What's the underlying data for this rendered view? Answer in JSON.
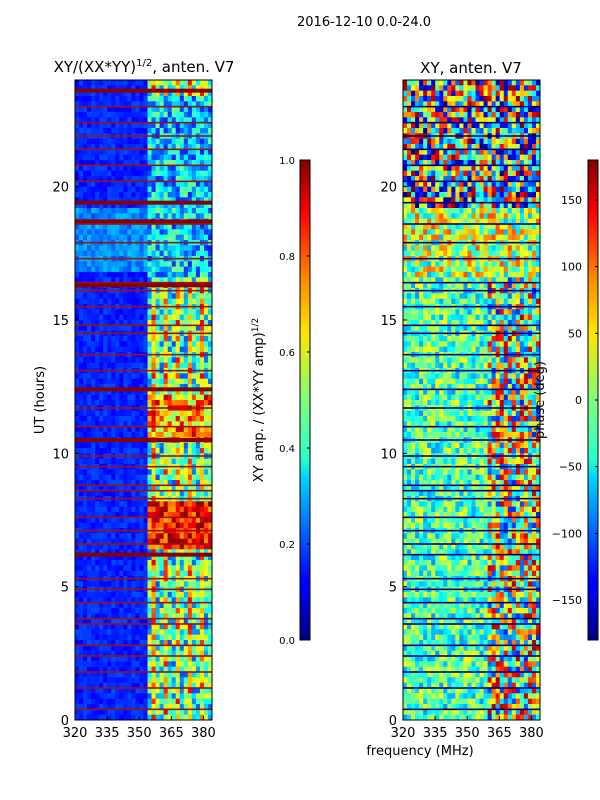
{
  "figure": {
    "suptitle": "2016-12-10 0.0-24.0"
  },
  "chart_data": [
    {
      "type": "heatmap",
      "title": "XY/(XX*YY)",
      "title_sup": "1/2",
      "title_suffix": ", anten. V7",
      "xlabel": "",
      "ylabel": "UT (hours)",
      "xlim": [
        320,
        384
      ],
      "ylim": [
        0,
        24
      ],
      "x_ticks": [
        320,
        335,
        350,
        365,
        380
      ],
      "y_ticks": [
        0,
        5,
        10,
        15,
        20
      ],
      "colorbar": {
        "label": "XY amp. / (XX*YY amp)",
        "label_sup": "1/2",
        "range": [
          0.0,
          1.0
        ],
        "ticks": [
          "0.0",
          "0.2",
          "0.4",
          "0.6",
          "0.8",
          "1.0"
        ]
      },
      "flagged_hours": [
        0.4,
        1.2,
        1.8,
        2.4,
        2.8,
        3.6,
        3.8,
        4.4,
        4.9,
        5.3,
        6.2,
        6.6,
        7.1,
        7.6,
        8.3,
        8.6,
        8.8,
        9.5,
        9.9,
        10.5,
        11.0,
        11.7,
        12.4,
        13.1,
        13.7,
        14.5,
        14.8,
        15.5,
        16.1,
        16.4,
        17.3,
        17.9,
        18.6,
        19.4,
        20.2,
        20.8,
        21.4,
        21.9,
        22.4,
        23.0
      ],
      "band_hours": [
        6.2,
        10.5,
        12.4,
        16.3,
        18.7,
        19.4,
        23.6
      ],
      "notes": "XY amplitude normalized; mostly low (0-0.2) at 320-352 MHz, higher (0.4-1.0) at 355-380 MHz"
    },
    {
      "type": "heatmap",
      "title": "XY, anten. V7",
      "xlabel": "frequency (MHz)",
      "ylabel": "",
      "xlim": [
        320,
        384
      ],
      "ylim": [
        0,
        24
      ],
      "x_ticks": [
        320,
        335,
        350,
        365,
        380
      ],
      "y_ticks": [
        0,
        5,
        10,
        15,
        20
      ],
      "colorbar": {
        "label": "phase (deg)",
        "range": [
          -180,
          180
        ],
        "ticks": [
          "−150",
          "−100",
          "−50",
          "0",
          "50",
          "100",
          "150"
        ]
      },
      "flagged_hours": [
        0.4,
        1.2,
        1.8,
        2.4,
        2.8,
        3.6,
        3.8,
        4.4,
        4.9,
        5.3,
        6.2,
        6.6,
        7.1,
        7.6,
        8.3,
        8.6,
        8.8,
        9.5,
        9.9,
        10.5,
        11.0,
        11.7,
        12.4,
        13.1,
        13.7,
        14.5,
        14.8,
        15.5,
        16.1,
        16.4,
        17.3,
        17.9,
        18.6,
        19.4,
        20.2,
        20.8,
        21.4,
        21.9,
        22.4,
        23.0
      ],
      "notes": "XY phase in degrees; noisy across band, larger excursions at 19-24 h"
    }
  ]
}
